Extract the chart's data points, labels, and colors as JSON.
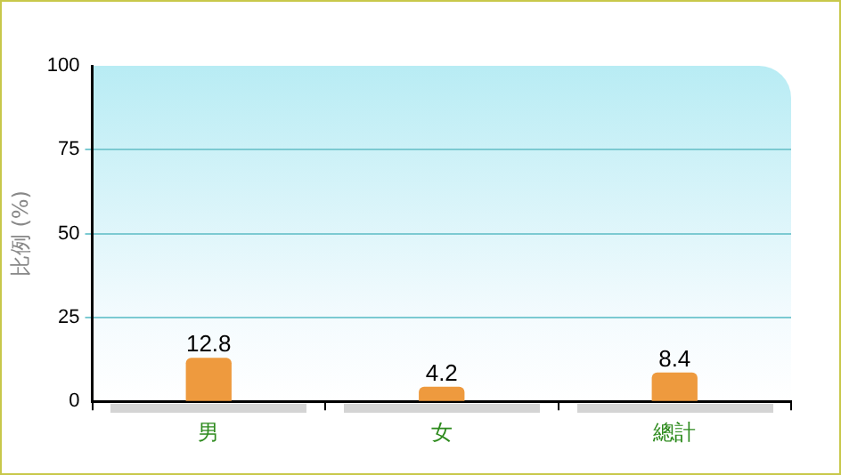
{
  "chart_data": {
    "type": "bar",
    "ylabel": "比例 (%)",
    "categories": [
      "男",
      "女",
      "總計"
    ],
    "values": [
      12.8,
      4.2,
      8.4
    ],
    "color": "#ee9a3e",
    "ylim": [
      0,
      100
    ],
    "yticks": [
      0,
      25,
      50,
      75,
      100
    ],
    "grid": "y",
    "data_labels": true
  }
}
